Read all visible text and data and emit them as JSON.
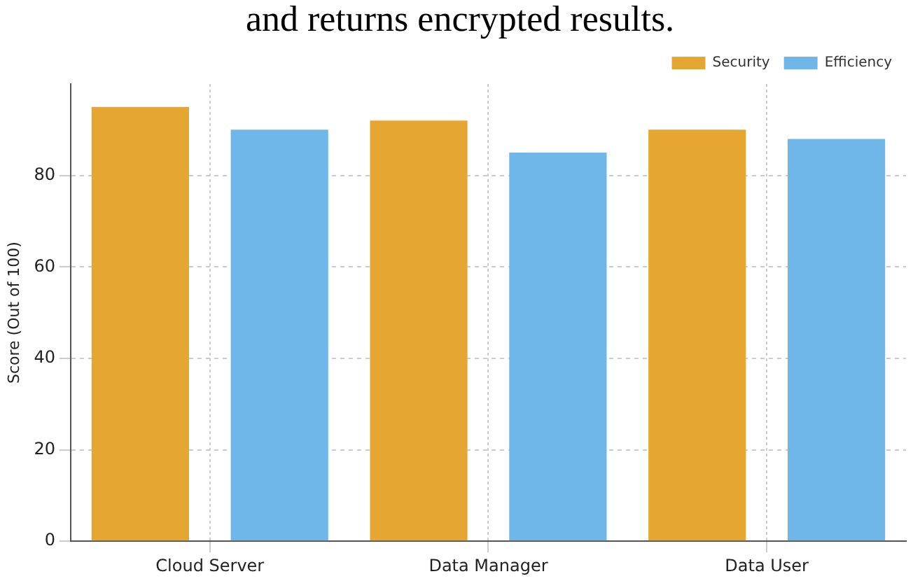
{
  "chart_data": {
    "type": "bar",
    "annotations": [
      "and returns encrypted results."
    ],
    "ylabel": "Score (Out of 100)",
    "categories": [
      "Cloud Server",
      "Data Manager",
      "Data User"
    ],
    "series": [
      {
        "name": "Security",
        "color": "#e5a632",
        "values": [
          95,
          92,
          90
        ]
      },
      {
        "name": "Efficiency",
        "color": "#6fb7e8",
        "values": [
          90,
          85,
          88
        ]
      }
    ],
    "ylim": [
      0,
      100
    ],
    "yticks": [
      0,
      20,
      40,
      60,
      80
    ],
    "grid": true,
    "legend": "top right"
  }
}
